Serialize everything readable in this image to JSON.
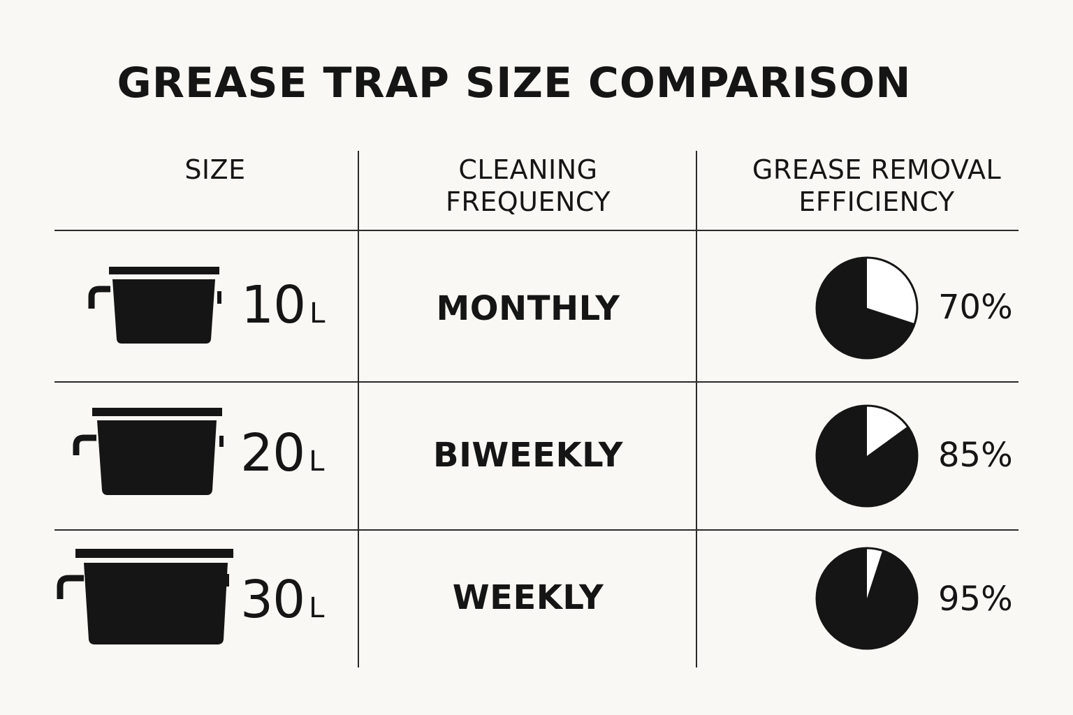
{
  "title": "GREASE TRAP SIZE COMPARISON",
  "headers": {
    "size": "SIZE",
    "frequency": [
      "CLEANING",
      "FREQUENCY"
    ],
    "efficiency": [
      "GREASE REMOVAL",
      "EFFICIENCY"
    ]
  },
  "chart_data": {
    "type": "table",
    "title": "GREASE TRAP SIZE COMPARISON",
    "columns": [
      "SIZE",
      "CLEANING FREQUENCY",
      "GREASE REMOVAL EFFICIENCY"
    ],
    "rows": [
      {
        "size_value": "10",
        "size_unit": "L",
        "frequency": "MONTHLY",
        "efficiency": 70,
        "efficiency_label": "70%"
      },
      {
        "size_value": "20",
        "size_unit": "L",
        "frequency": "BIWEEKLY",
        "efficiency": 85,
        "efficiency_label": "85%"
      },
      {
        "size_value": "30",
        "size_unit": "L",
        "frequency": "WEEKLY",
        "efficiency": 95,
        "efficiency_label": "95%"
      }
    ]
  },
  "colors": {
    "background": "#faf8f4",
    "ink": "#151515",
    "pie_filled": "#151515",
    "pie_remaining": "#ffffff"
  },
  "icons": {
    "size": "grease-trap-icon",
    "efficiency": "pie-chart-icon"
  }
}
